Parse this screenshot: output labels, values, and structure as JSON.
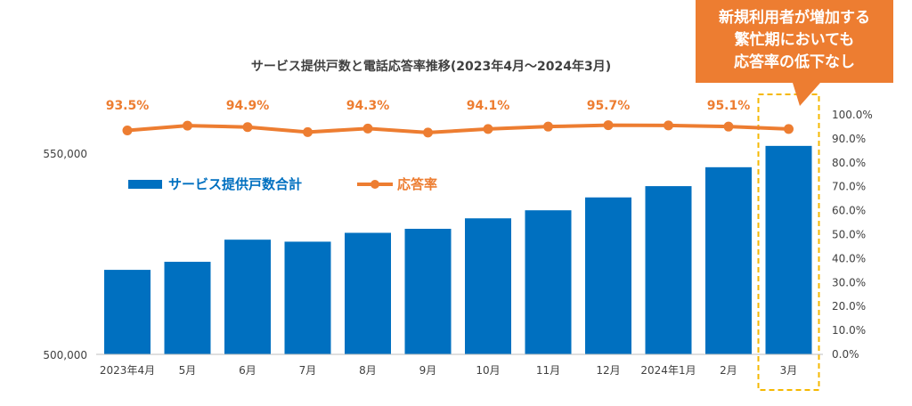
{
  "chart_data": {
    "type": "bar",
    "title": "サービス提供戸数と電話応答率推移(2023年4月～2024年3月)",
    "categories": [
      "2023年4月",
      "5月",
      "6月",
      "7月",
      "8月",
      "9月",
      "10月",
      "11月",
      "12月",
      "2024年1月",
      "2月",
      "3月"
    ],
    "series": [
      {
        "name": "サービス提供戸数合計",
        "axis": "left",
        "type": "bar",
        "color": "#0070c0",
        "values": [
          521000,
          523000,
          528500,
          528000,
          530200,
          531200,
          533800,
          535800,
          539000,
          541800,
          546500,
          551800
        ]
      },
      {
        "name": "応答率",
        "axis": "right",
        "type": "line",
        "color": "#ed7d31",
        "values": [
          93.5,
          95.5,
          94.9,
          92.8,
          94.3,
          92.6,
          94.1,
          95.1,
          95.7,
          95.6,
          95.1,
          94.1
        ],
        "data_labels": [
          "93.5%",
          "",
          "94.9%",
          "",
          "94.3%",
          "",
          "94.1%",
          "",
          "95.7%",
          "",
          "95.1%",
          ""
        ]
      }
    ],
    "left_axis": {
      "min": 500000,
      "max": 550000,
      "tick_labels": [
        "500,000",
        "550,000"
      ]
    },
    "right_axis": {
      "min": 0,
      "max": 100,
      "tick_labels": [
        "0.0%",
        "10.0%",
        "20.0%",
        "30.0%",
        "40.0%",
        "50.0%",
        "60.0%",
        "70.0%",
        "80.0%",
        "90.0%",
        "100.0%"
      ]
    },
    "legend": {
      "placement": "left-middle"
    },
    "highlight": {
      "category": "3月",
      "style": "dashed-box",
      "color": "#f5b800"
    },
    "callout": {
      "lines": [
        "新規利用者が増加する",
        "繁忙期においても",
        "応答率の低下なし"
      ],
      "background": "#ed7d31",
      "text_color": "#ffffff"
    },
    "grid": false
  }
}
